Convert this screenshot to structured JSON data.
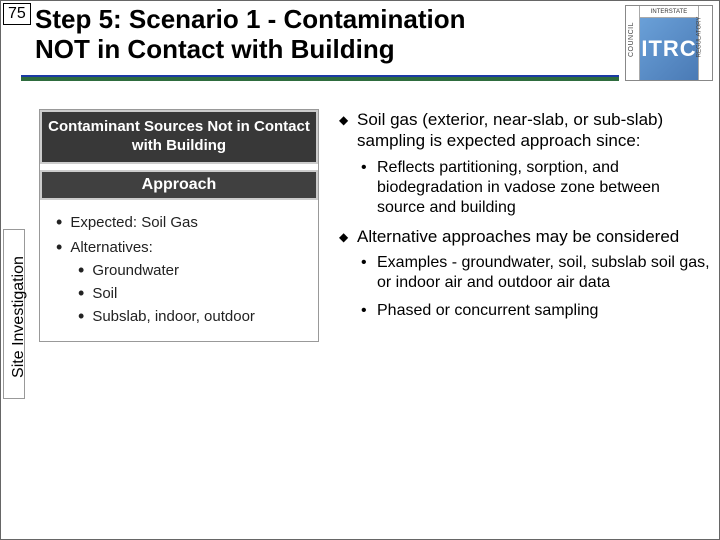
{
  "slide_number": "75",
  "title": {
    "line1": "Step 5: Scenario 1 - Contamination",
    "line2": "NOT in Contact with Building"
  },
  "logo": {
    "left_text": "COUNCIL",
    "top_text": "INTERSTATE",
    "main": "ITRC",
    "right_text": "REGULATORY"
  },
  "side_tab": "Site Investigation",
  "left_panel": {
    "heading1": "Contaminant Sources Not in Contact with Building",
    "heading2": "Approach",
    "items": [
      {
        "level": 1,
        "text": "Expected: Soil Gas"
      },
      {
        "level": 1,
        "text": "Alternatives:"
      },
      {
        "level": 2,
        "text": "Groundwater"
      },
      {
        "level": 2,
        "text": "Soil"
      },
      {
        "level": 2,
        "text": "Subslab, indoor, outdoor"
      }
    ]
  },
  "right_panel": {
    "blocks": [
      {
        "text": "Soil gas (exterior, near-slab, or sub-slab) sampling is expected approach since:",
        "sub": [
          "Reflects partitioning, sorption, and biodegradation in vadose zone between source and building"
        ]
      },
      {
        "text": "Alternative approaches may be considered",
        "sub": [
          "Examples - groundwater, soil, subslab soil gas, or indoor air and outdoor air data",
          "Phased or concurrent sampling"
        ]
      }
    ]
  },
  "colors": {
    "underline_green": "#2e6c3e",
    "underline_blue": "#1b3aa4",
    "panel_dark": "#383838",
    "logo_grad_a": "#6aa0d8",
    "logo_grad_b": "#4a7ab5"
  }
}
